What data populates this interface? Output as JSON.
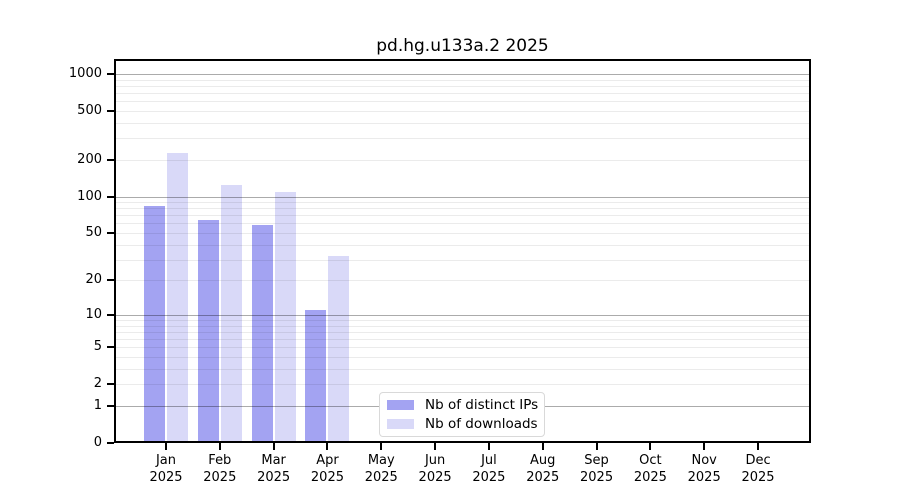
{
  "chart_data": {
    "type": "bar",
    "title": "pd.hg.u133a.2 2025",
    "categories": [
      "Jan",
      "Feb",
      "Mar",
      "Apr",
      "May",
      "Jun",
      "Jul",
      "Aug",
      "Sep",
      "Oct",
      "Nov",
      "Dec"
    ],
    "category_year": "2025",
    "series": [
      {
        "name": "Nb of distinct IPs",
        "color": "#a3a3f2",
        "values": [
          83,
          64,
          58,
          11,
          0,
          0,
          0,
          0,
          0,
          0,
          0,
          0
        ]
      },
      {
        "name": "Nb of downloads",
        "color": "#d9d9f8",
        "values": [
          225,
          125,
          108,
          32,
          0,
          0,
          0,
          0,
          0,
          0,
          0,
          0
        ]
      }
    ],
    "xlabel": "",
    "ylabel": "",
    "y_scale": "log1p",
    "y_ticks": [
      0,
      1,
      2,
      5,
      10,
      20,
      50,
      100,
      200,
      500,
      1000
    ],
    "ylim": [
      0,
      1300
    ],
    "grid": {
      "on": true,
      "major_values": [
        1,
        10,
        100,
        1000
      ],
      "minor_values": [
        2,
        3,
        4,
        5,
        6,
        7,
        8,
        9,
        20,
        30,
        40,
        50,
        60,
        70,
        80,
        90,
        200,
        300,
        400,
        500,
        600,
        700,
        800,
        900
      ],
      "major_color": "rgba(0,0,0,0.33)",
      "minor_color": "rgba(0,0,0,0.08)"
    },
    "legend": {
      "position": "inside-bottom-center"
    },
    "axis_color": "#000000",
    "background_color": "#ffffff"
  }
}
